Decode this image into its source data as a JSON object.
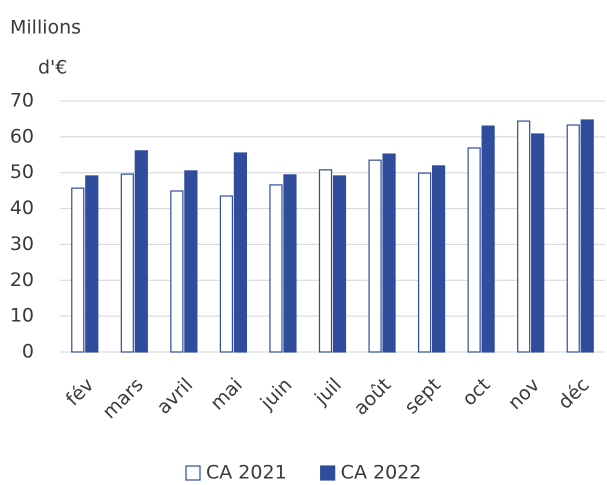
{
  "chart_data": {
    "type": "bar",
    "ylabel": [
      "Millions",
      "d'€"
    ],
    "categories": [
      "fév",
      "mars",
      "avril",
      "mai",
      "juin",
      "juil",
      "août",
      "sept",
      "oct",
      "nov",
      "déc"
    ],
    "series": [
      {
        "name": "CA 2021",
        "color": "#ffffff",
        "edge": "#2f4d9c",
        "values": [
          45.7,
          49.6,
          44.9,
          43.5,
          46.6,
          50.8,
          53.5,
          49.9,
          56.9,
          64.4,
          63.3
        ]
      },
      {
        "name": "CA 2022",
        "color": "#2f4d9c",
        "edge": "#2f4d9c",
        "values": [
          49.1,
          56.1,
          50.5,
          55.5,
          49.4,
          49.1,
          55.2,
          51.9,
          63.0,
          60.8,
          64.7
        ]
      }
    ],
    "ylim": [
      0,
      70
    ],
    "yticks": [
      0,
      10,
      20,
      30,
      40,
      50,
      60,
      70
    ],
    "grid": true,
    "legend": "bottom"
  }
}
